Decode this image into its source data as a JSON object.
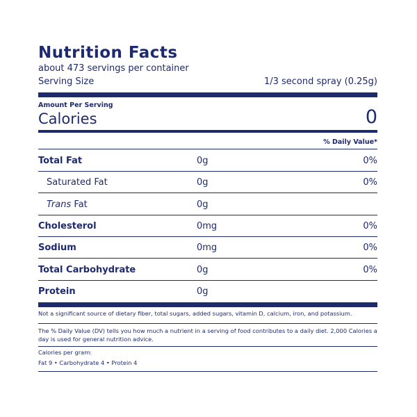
{
  "header": {
    "title": "Nutrition Facts",
    "servings": "about 473 servings per container",
    "serving_size_label": "Serving Size",
    "serving_size": "1/3 second spray (0.25g)"
  },
  "calories": {
    "amount_per_serving": "Amount Per Serving",
    "label": "Calories",
    "value": "0"
  },
  "daily_value_header": "% Daily Value*",
  "rows": [
    {
      "name": "Total Fat",
      "amount": "0g",
      "dv": "0%"
    },
    {
      "name": "Saturated Fat",
      "amount": "0g",
      "dv": "0%"
    },
    {
      "italic": "Trans",
      "name": "Fat",
      "amount": "0g"
    },
    {
      "name": "Cholesterol",
      "amount": "0mg",
      "dv": "0%"
    },
    {
      "name": "Sodium",
      "amount": "0mg",
      "dv": "0%"
    },
    {
      "name": "Total Carbohydrate",
      "amount": "0g",
      "dv": "0%"
    },
    {
      "name": "Protein",
      "amount": "0g"
    }
  ],
  "footnotes": {
    "not_significant": "Not a significant source of dietary fiber, total sugars, added sugars, vitamin D, calcium, iron, and potassium.",
    "daily_value_line1": "The % Daily Value (DV) tells you how much a nutrient in a serving of food contributes to a daily diet. 2,000 Calories a",
    "daily_value_line2": "day is used for general nutrition advice.",
    "calories_per_gram": "Calories per gram:",
    "gram_values": "Fat 9 • Carbohydrate 4 • Protein 4"
  }
}
